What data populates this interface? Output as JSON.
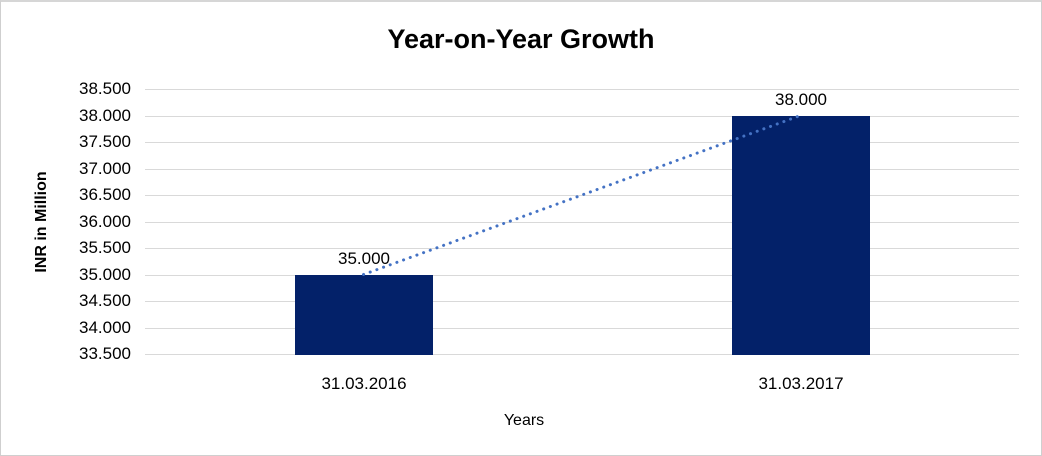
{
  "chart_data": {
    "type": "bar",
    "title": "Year-on-Year Growth",
    "xlabel": "Years",
    "ylabel": "INR in Million",
    "categories": [
      "31.03.2016",
      "31.03.2017"
    ],
    "values": [
      35.0,
      38.0
    ],
    "data_labels": [
      "35.000",
      "38.000"
    ],
    "ylim": [
      33.5,
      38.5
    ],
    "ytick_step": 0.5,
    "ytick_labels": [
      "38.500",
      "38.000",
      "37.500",
      "37.000",
      "36.500",
      "36.000",
      "35.500",
      "35.000",
      "34.500",
      "34.000",
      "33.500"
    ],
    "grid": true,
    "legend": false,
    "trendline": {
      "style": "dotted",
      "from_series_index": 0,
      "to_series_index": 1,
      "color": "#4472C4"
    },
    "colors": {
      "bar": "#032169",
      "gridline": "#d9d9d9",
      "text": "#000000",
      "chart_border": "#cfcfcf",
      "background": "#ffffff"
    }
  }
}
